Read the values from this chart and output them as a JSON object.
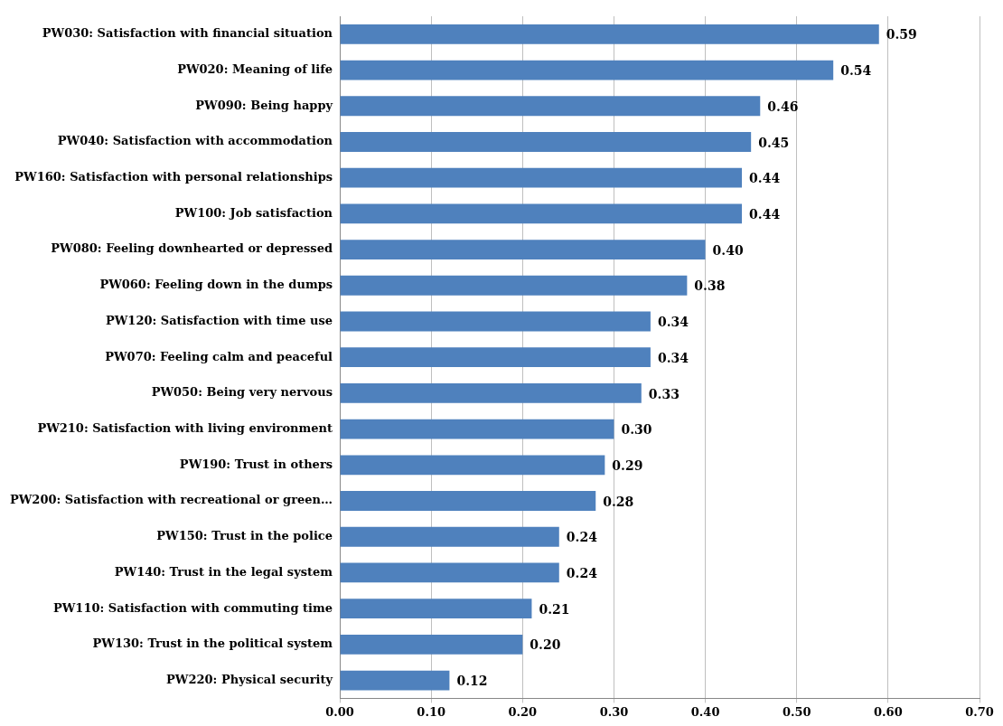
{
  "chart_data": {
    "type": "bar",
    "orientation": "horizontal",
    "categories": [
      "PW030: Satisfaction with financial situation",
      "PW020: Meaning of life",
      "PW090: Being happy",
      "PW040: Satisfaction with accommodation",
      "PW160: Satisfaction with personal relationships",
      "PW100: Job satisfaction",
      "PW080: Feeling downhearted or depressed",
      "PW060: Feeling down in the dumps",
      "PW120: Satisfaction with time use",
      "PW070: Feeling calm and peaceful",
      "PW050: Being very nervous",
      "PW210: Satisfaction with living environment",
      "PW190: Trust in others",
      "PW200: Satisfaction with recreational or green…",
      "PW150: Trust in the police",
      "PW140: Trust in the legal system",
      "PW110: Satisfaction with commuting time",
      "PW130: Trust in the political system",
      "PW220: Physical security"
    ],
    "values": [
      0.59,
      0.54,
      0.46,
      0.45,
      0.44,
      0.44,
      0.4,
      0.38,
      0.34,
      0.34,
      0.33,
      0.3,
      0.29,
      0.28,
      0.24,
      0.24,
      0.21,
      0.2,
      0.12
    ],
    "color": "#4f81bd",
    "xlim": [
      0,
      0.7
    ],
    "xticks": [
      {
        "value": 0,
        "label": "0.00"
      },
      {
        "value": 0.1,
        "label": "0.10"
      },
      {
        "value": 0.2,
        "label": "0.20"
      },
      {
        "value": 0.3,
        "label": "0.30"
      },
      {
        "value": 0.4,
        "label": "0.40"
      },
      {
        "value": 0.5,
        "label": "0.50"
      },
      {
        "value": 0.6,
        "label": "0.60"
      },
      {
        "value": 0.7,
        "label": "0.70"
      }
    ],
    "value_labels": [
      "0.59",
      "0.54",
      "0.46",
      "0.45",
      "0.44",
      "0.44",
      "0.40",
      "0.38",
      "0.34",
      "0.34",
      "0.33",
      "0.30",
      "0.29",
      "0.28",
      "0.24",
      "0.24",
      "0.21",
      "0.20",
      "0.12"
    ],
    "grid": "x"
  }
}
